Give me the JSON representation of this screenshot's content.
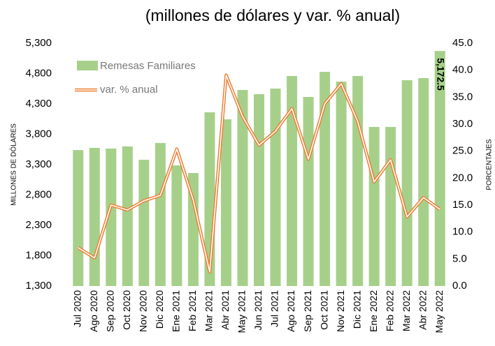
{
  "chart_data": {
    "type": "bar_line",
    "title": "(millones  de dólares y var. % anual)",
    "y_label": "MILLONES DE DÓLARES",
    "y2_label": "PORCENTAJES",
    "categories": [
      "Jul 2020",
      "Ago 2020",
      "Sep 2020",
      "Oct 2020",
      "Nov 2020",
      "Dic 2020",
      "Ene 2021",
      "Feb 2021",
      "Mar 2021",
      "Abr 2021",
      "May 2021",
      "Jun 2021",
      "Jul 2021",
      "Ago 2021",
      "Sep 2021",
      "Oct 2021",
      "Nov 2021",
      "Dic 2021",
      "Ene 2022",
      "Feb 2022",
      "Mar 2022",
      "Abr 2022",
      "May 2022"
    ],
    "series": [
      {
        "name": "Remesas Familiares",
        "type": "bar",
        "color": "#a6d08a",
        "axis": "y",
        "values": [
          3540,
          3576,
          3565,
          3600,
          3380,
          3656,
          3288,
          3162,
          4162,
          4047,
          4530,
          4461,
          4553,
          4760,
          4415,
          4829,
          4668,
          4760,
          3921,
          3921,
          4691,
          4725,
          5172.5
        ],
        "value_labels": [
          null,
          null,
          null,
          null,
          null,
          null,
          null,
          null,
          null,
          null,
          null,
          null,
          null,
          null,
          null,
          null,
          null,
          null,
          null,
          null,
          null,
          null,
          "5,172.5"
        ]
      },
      {
        "name": "var. % anual",
        "type": "line",
        "color": "#ed7d31",
        "axis": "y2",
        "values": [
          7.1,
          5.2,
          15.0,
          14.1,
          15.8,
          16.8,
          25.4,
          15.9,
          2.6,
          39.1,
          31.4,
          26.1,
          28.7,
          32.9,
          23.5,
          33.8,
          37.5,
          30.5,
          19.3,
          23.4,
          12.8,
          16.4,
          14.2
        ]
      }
    ],
    "ylim": [
      1300,
      5300
    ],
    "yticks": [
      {
        "value": 1300,
        "label": "1,300"
      },
      {
        "value": 1800,
        "label": "1,800"
      },
      {
        "value": 2300,
        "label": "2,300"
      },
      {
        "value": 2800,
        "label": "2,800"
      },
      {
        "value": 3300,
        "label": "3,300"
      },
      {
        "value": 3800,
        "label": "3,800"
      },
      {
        "value": 4300,
        "label": "4,300"
      },
      {
        "value": 4800,
        "label": "4,800"
      },
      {
        "value": 5300,
        "label": "5,300"
      }
    ],
    "y2lim": [
      0,
      45
    ],
    "y2ticks": [
      {
        "value": 0,
        "label": "0.0"
      },
      {
        "value": 5,
        "label": "5.0"
      },
      {
        "value": 10,
        "label": "10.0"
      },
      {
        "value": 15,
        "label": "15.0"
      },
      {
        "value": 20,
        "label": "20.0"
      },
      {
        "value": 25,
        "label": "25.0"
      },
      {
        "value": 30,
        "label": "30.0"
      },
      {
        "value": 35,
        "label": "35.0"
      },
      {
        "value": 40,
        "label": "40.0"
      },
      {
        "value": 45,
        "label": "45.0"
      }
    ],
    "legend": "top-left"
  }
}
